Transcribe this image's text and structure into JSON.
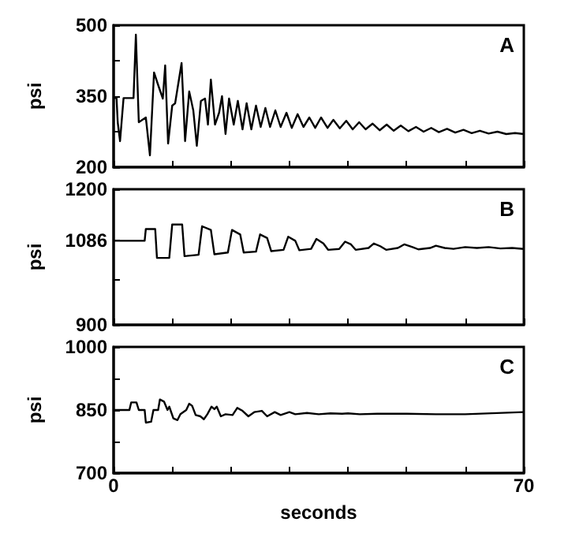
{
  "chart_data": [
    {
      "type": "line",
      "ylabel": "psi",
      "annotations": [
        "A"
      ],
      "xlim": [
        0,
        70
      ],
      "ylim": [
        200,
        500
      ],
      "yticks": [
        200,
        {
          "value": 275,
          "label": null
        },
        350,
        {
          "value": 425,
          "label": null
        },
        500
      ],
      "xticks": [
        {
          "value": 0,
          "label": null
        },
        {
          "value": 10,
          "label": null
        },
        {
          "value": 20,
          "label": null
        },
        {
          "value": 30,
          "label": null
        },
        {
          "value": 40,
          "label": null
        },
        {
          "value": 50,
          "label": null
        },
        {
          "value": 60,
          "label": null
        },
        {
          "value": 70,
          "label": null
        }
      ],
      "tick_labels": "y",
      "grid": false,
      "marker": "none",
      "line_style": "solid",
      "x": [
        0,
        0.5,
        0.7,
        1.1,
        1.7,
        3.4,
        3.8,
        4.3,
        5.5,
        6.2,
        6.9,
        7.7,
        8.4,
        8.8,
        9.3,
        10.0,
        10.5,
        11.6,
        12.2,
        12.9,
        13.6,
        14.2,
        14.9,
        15.6,
        16.1,
        16.6,
        17.3,
        18.0,
        18.5,
        19.1,
        19.7,
        20.5,
        21.2,
        22.0,
        22.7,
        23.5,
        24.3,
        25.1,
        25.9,
        26.7,
        27.6,
        28.5,
        29.5,
        30.4,
        31.4,
        32.4,
        33.4,
        34.4,
        35.4,
        36.5,
        37.5,
        38.6,
        39.7,
        40.8,
        41.9,
        43.0,
        44.2,
        45.4,
        46.6,
        47.8,
        49.0,
        50.3,
        51.6,
        52.9,
        54.2,
        55.5,
        56.9,
        58.3,
        59.7,
        61.1,
        62.5,
        64,
        65.5,
        67,
        68.5,
        70
      ],
      "series": [
        {
          "color": "#000000",
          "values": [
            346,
            346,
            295,
            255,
            346,
            346,
            480,
            295,
            305,
            225,
            400,
            370,
            345,
            415,
            250,
            330,
            335,
            420,
            255,
            360,
            320,
            245,
            340,
            345,
            290,
            385,
            290,
            315,
            350,
            270,
            345,
            290,
            340,
            280,
            335,
            280,
            330,
            285,
            325,
            285,
            320,
            285,
            315,
            283,
            312,
            285,
            305,
            283,
            305,
            283,
            300,
            282,
            298,
            280,
            295,
            280,
            292,
            278,
            290,
            277,
            288,
            276,
            285,
            275,
            283,
            274,
            281,
            273,
            279,
            272,
            277,
            271,
            275,
            270,
            272,
            270
          ]
        }
      ]
    },
    {
      "type": "line",
      "ylabel": "psi",
      "annotations": [
        "B"
      ],
      "xlim": [
        0,
        70
      ],
      "ylim": [
        900,
        1200
      ],
      "yticks": [
        900,
        {
          "value": 1000,
          "label": null
        },
        1086,
        1200
      ],
      "xticks": [
        {
          "value": 0,
          "label": null
        },
        {
          "value": 10,
          "label": null
        },
        {
          "value": 20,
          "label": null
        },
        {
          "value": 30,
          "label": null
        },
        {
          "value": 40,
          "label": null
        },
        {
          "value": 50,
          "label": null
        },
        {
          "value": 60,
          "label": null
        },
        {
          "value": 70,
          "label": null
        }
      ],
      "tick_labels": "y",
      "grid": false,
      "marker": "none",
      "line_style": "solid",
      "x": [
        0,
        5.3,
        5.5,
        7.1,
        7.4,
        9.5,
        10.0,
        11.7,
        12.1,
        14.5,
        15.1,
        16.6,
        17.2,
        19.5,
        20.2,
        21.6,
        22.2,
        24.3,
        25.0,
        26.2,
        26.9,
        29.0,
        29.8,
        31.0,
        31.7,
        33.7,
        34.6,
        35.8,
        36.6,
        38.5,
        39.5,
        40.5,
        41.3,
        43.5,
        44.4,
        45.5,
        46.5,
        48.5,
        49.6,
        51,
        52,
        54,
        55,
        56.5,
        58,
        60,
        62,
        64,
        66,
        68,
        70
      ],
      "series": [
        {
          "color": "#000000",
          "values": [
            1086,
            1086,
            1112,
            1112,
            1048,
            1048,
            1122,
            1122,
            1052,
            1055,
            1118,
            1110,
            1056,
            1060,
            1110,
            1100,
            1060,
            1062,
            1100,
            1092,
            1063,
            1066,
            1095,
            1086,
            1065,
            1068,
            1090,
            1080,
            1066,
            1068,
            1084,
            1078,
            1066,
            1070,
            1080,
            1074,
            1066,
            1070,
            1078,
            1072,
            1067,
            1070,
            1075,
            1070,
            1068,
            1072,
            1070,
            1072,
            1069,
            1070,
            1068
          ]
        }
      ]
    },
    {
      "type": "line",
      "ylabel": "psi",
      "xlabel": "seconds",
      "annotations": [
        "C"
      ],
      "xlim": [
        0,
        70
      ],
      "ylim": [
        700,
        1000
      ],
      "yticks": [
        700,
        {
          "value": 775,
          "label": null
        },
        850,
        {
          "value": 925,
          "label": null
        },
        1000
      ],
      "xticks": [
        0,
        {
          "value": 10,
          "label": null
        },
        {
          "value": 20,
          "label": null
        },
        {
          "value": 30,
          "label": null
        },
        {
          "value": 40,
          "label": null
        },
        {
          "value": 50,
          "label": null
        },
        {
          "value": 60,
          "label": null
        },
        70
      ],
      "grid": false,
      "marker": "none",
      "line_style": "solid",
      "x": [
        0,
        2.7,
        3.0,
        3.9,
        4.3,
        5.3,
        5.5,
        6.4,
        6.8,
        7.6,
        7.9,
        8.6,
        9.2,
        9.5,
        10.2,
        10.9,
        11.4,
        12.4,
        12.9,
        13.4,
        14.0,
        14.8,
        15.4,
        16.0,
        16.7,
        17.2,
        17.6,
        18.3,
        19.1,
        20.3,
        21.1,
        22,
        23,
        24,
        25.3,
        26.2,
        27.5,
        28.5,
        30,
        31,
        33,
        35,
        37,
        39,
        40,
        42,
        45,
        50,
        55,
        60,
        70
      ],
      "series": [
        {
          "color": "#000000",
          "values": [
            850,
            850,
            868,
            868,
            850,
            850,
            820,
            822,
            850,
            850,
            875,
            870,
            850,
            858,
            830,
            826,
            840,
            850,
            865,
            860,
            838,
            835,
            828,
            840,
            858,
            852,
            858,
            835,
            840,
            838,
            855,
            848,
            835,
            845,
            848,
            835,
            845,
            838,
            845,
            840,
            843,
            840,
            842,
            841,
            842,
            840,
            841,
            841,
            840,
            840,
            845
          ]
        }
      ]
    }
  ]
}
